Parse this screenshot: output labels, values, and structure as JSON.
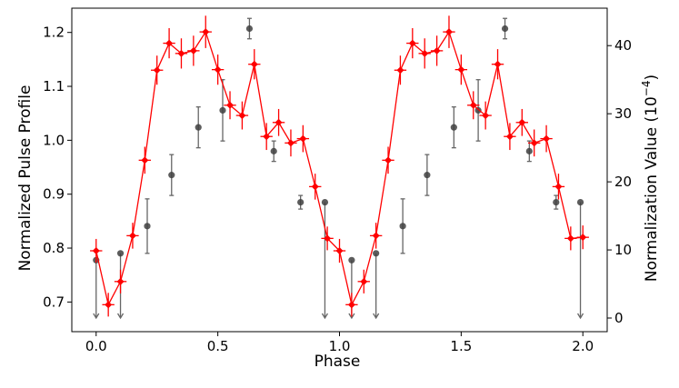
{
  "chart_data": {
    "type": "scatter",
    "xlabel": "Phase",
    "ylabel": "Normalized Pulse Profile",
    "y2label": "Normalization Value (10",
    "y2label_exp": "−4",
    "y2label_close": ")",
    "xlim": [
      -0.1,
      2.1
    ],
    "ylim": [
      0.645,
      1.245
    ],
    "y2lim": [
      -2.0,
      45.5
    ],
    "xticks": [
      0.0,
      0.5,
      1.0,
      1.5,
      2.0
    ],
    "xtick_labels": [
      "0.0",
      "0.5",
      "1.0",
      "1.5",
      "2.0"
    ],
    "yticks": [
      0.7,
      0.8,
      0.9,
      1.0,
      1.1,
      1.2
    ],
    "ytick_labels": [
      "0.7",
      "0.8",
      "0.9",
      "1.0",
      "1.1",
      "1.2"
    ],
    "y2ticks": [
      0,
      10,
      20,
      30,
      40
    ],
    "y2tick_labels": [
      "0",
      "10",
      "20",
      "30",
      "40"
    ],
    "grid": false,
    "legend": "none",
    "series": [
      {
        "axis": "left",
        "style": "line-with-errorbars",
        "color": "#ff0000",
        "x": [
          0.0,
          0.05,
          0.1,
          0.15,
          0.2,
          0.25,
          0.3,
          0.35,
          0.4,
          0.45,
          0.5,
          0.55,
          0.6,
          0.65,
          0.7,
          0.75,
          0.8,
          0.85,
          0.9,
          0.95,
          1.0,
          1.05,
          1.1,
          1.15,
          1.2,
          1.25,
          1.3,
          1.35,
          1.4,
          1.45,
          1.5,
          1.55,
          1.6,
          1.65,
          1.7,
          1.75,
          1.8,
          1.85,
          1.9,
          1.95,
          2.0
        ],
        "y": [
          0.795,
          0.695,
          0.738,
          0.823,
          0.963,
          1.13,
          1.18,
          1.161,
          1.166,
          1.201,
          1.131,
          1.065,
          1.046,
          1.141,
          1.007,
          1.033,
          0.995,
          1.003,
          0.914,
          0.818,
          0.795,
          0.695,
          0.738,
          0.823,
          0.963,
          1.13,
          1.18,
          1.161,
          1.166,
          1.201,
          1.131,
          1.065,
          1.046,
          1.141,
          1.007,
          1.033,
          0.995,
          1.003,
          0.914,
          0.818,
          0.82
        ],
        "yerr": [
          0.022,
          0.022,
          0.022,
          0.024,
          0.025,
          0.027,
          0.028,
          0.028,
          0.028,
          0.03,
          0.028,
          0.026,
          0.026,
          0.028,
          0.025,
          0.025,
          0.025,
          0.025,
          0.024,
          0.022,
          0.022,
          0.022,
          0.022,
          0.024,
          0.025,
          0.027,
          0.028,
          0.028,
          0.028,
          0.03,
          0.028,
          0.026,
          0.026,
          0.028,
          0.025,
          0.025,
          0.025,
          0.025,
          0.024,
          0.022,
          0.022
        ],
        "xerr": 0.025
      },
      {
        "axis": "right",
        "style": "points-with-errorbars",
        "color": "#404040",
        "x": [
          0.0,
          0.1,
          0.21,
          0.31,
          0.42,
          0.52,
          0.63,
          0.73,
          0.84,
          0.94,
          1.05,
          1.15,
          1.26,
          1.36,
          1.47,
          1.57,
          1.68,
          1.78,
          1.89,
          1.99
        ],
        "y": [
          8.5,
          9.5,
          13.5,
          21.0,
          28.0,
          30.5,
          42.5,
          24.5,
          17.0,
          17.0,
          8.5,
          9.5,
          13.5,
          21.0,
          28.0,
          30.5,
          42.5,
          24.5,
          17.0,
          17.0
        ],
        "err_low": [
          8.5,
          9.5,
          4.0,
          3.0,
          3.0,
          4.5,
          1.5,
          1.5,
          1.0,
          17.0,
          8.5,
          9.5,
          4.0,
          3.0,
          3.0,
          4.5,
          1.5,
          1.5,
          1.0,
          17.0
        ],
        "err_high": [
          0,
          0,
          4.0,
          3.0,
          3.0,
          4.5,
          1.5,
          1.5,
          1.0,
          0,
          0,
          0,
          4.0,
          3.0,
          3.0,
          4.5,
          1.5,
          1.5,
          1.0,
          0
        ],
        "upper_limit": [
          true,
          true,
          false,
          false,
          false,
          false,
          false,
          false,
          false,
          true,
          true,
          true,
          false,
          false,
          false,
          false,
          false,
          false,
          false,
          true
        ]
      }
    ]
  }
}
